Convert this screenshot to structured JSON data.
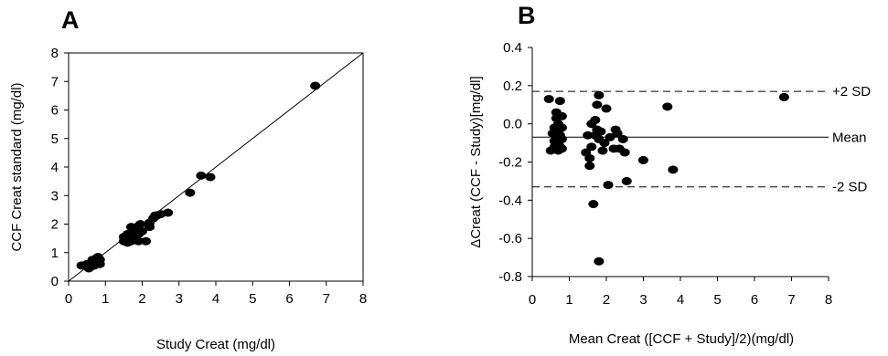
{
  "chart_data": [
    {
      "type": "scatter",
      "panel_label": "A",
      "xlabel": "Study Creat (mg/dl)",
      "ylabel": "CCF Creat standard (mg/dl)",
      "xlim": [
        0,
        8
      ],
      "ylim": [
        0,
        8
      ],
      "xticks": [
        0,
        1,
        2,
        3,
        4,
        5,
        6,
        7,
        8
      ],
      "yticks": [
        0,
        1,
        2,
        3,
        4,
        5,
        6,
        7,
        8
      ],
      "identity_line": true,
      "grid": false,
      "points": [
        [
          0.35,
          0.55
        ],
        [
          0.5,
          0.6
        ],
        [
          0.55,
          0.45
        ],
        [
          0.6,
          0.5
        ],
        [
          0.65,
          0.75
        ],
        [
          0.7,
          0.65
        ],
        [
          0.7,
          0.55
        ],
        [
          0.75,
          0.8
        ],
        [
          0.75,
          0.7
        ],
        [
          0.8,
          0.85
        ],
        [
          0.85,
          0.75
        ],
        [
          0.85,
          0.6
        ],
        [
          1.5,
          1.4
        ],
        [
          1.5,
          1.55
        ],
        [
          1.55,
          1.45
        ],
        [
          1.6,
          1.65
        ],
        [
          1.6,
          1.35
        ],
        [
          1.65,
          1.5
        ],
        [
          1.7,
          1.9
        ],
        [
          1.7,
          1.4
        ],
        [
          1.75,
          1.7
        ],
        [
          1.8,
          1.55
        ],
        [
          1.85,
          1.9
        ],
        [
          1.9,
          1.65
        ],
        [
          1.9,
          1.4
        ],
        [
          1.95,
          2.0
        ],
        [
          2.0,
          1.75
        ],
        [
          2.1,
          1.4
        ],
        [
          2.2,
          2.05
        ],
        [
          2.2,
          1.9
        ],
        [
          2.3,
          2.2
        ],
        [
          2.35,
          2.3
        ],
        [
          2.4,
          2.3
        ],
        [
          2.5,
          2.35
        ],
        [
          2.7,
          2.4
        ],
        [
          3.3,
          3.1
        ],
        [
          3.6,
          3.7
        ],
        [
          3.85,
          3.65
        ],
        [
          6.7,
          6.85
        ]
      ]
    },
    {
      "type": "scatter",
      "panel_label": "B",
      "xlabel": "Mean Creat ([CCF + Study]/2)(mg/dl)",
      "ylabel": "ΔCreat (CCF - Study)[mg/dl]",
      "xlim": [
        0,
        8
      ],
      "ylim": [
        -0.8,
        0.4
      ],
      "xticks": [
        0,
        1,
        2,
        3,
        4,
        5,
        6,
        7,
        8
      ],
      "yticks": [
        "0.4",
        "0.2",
        "0.0",
        "-0.2",
        "-0.4",
        "-0.6",
        "-0.8"
      ],
      "grid": false,
      "reference_lines": [
        {
          "label": "+2 SD",
          "y": 0.17,
          "style": "dashed"
        },
        {
          "label": "Mean",
          "y": -0.07,
          "style": "solid"
        },
        {
          "label": "-2 SD",
          "y": -0.33,
          "style": "dashed"
        }
      ],
      "points": [
        [
          0.45,
          0.13
        ],
        [
          0.5,
          -0.14
        ],
        [
          0.55,
          -0.05
        ],
        [
          0.6,
          -0.02
        ],
        [
          0.6,
          -0.09
        ],
        [
          0.6,
          -0.12
        ],
        [
          0.65,
          0.06
        ],
        [
          0.65,
          0.03
        ],
        [
          0.65,
          -0.07
        ],
        [
          0.7,
          0.0
        ],
        [
          0.7,
          -0.04
        ],
        [
          0.7,
          -0.1
        ],
        [
          0.7,
          -0.14
        ],
        [
          0.75,
          0.12
        ],
        [
          0.75,
          -0.06
        ],
        [
          0.75,
          -0.12
        ],
        [
          0.8,
          0.04
        ],
        [
          0.8,
          -0.02
        ],
        [
          0.8,
          -0.08
        ],
        [
          0.8,
          -0.13
        ],
        [
          1.45,
          -0.15
        ],
        [
          1.5,
          -0.06
        ],
        [
          1.55,
          -0.18
        ],
        [
          1.55,
          -0.22
        ],
        [
          1.6,
          0.0
        ],
        [
          1.6,
          -0.12
        ],
        [
          1.65,
          -0.42
        ],
        [
          1.7,
          0.02
        ],
        [
          1.7,
          -0.06
        ],
        [
          1.75,
          0.1
        ],
        [
          1.75,
          -0.03
        ],
        [
          1.8,
          -0.72
        ],
        [
          1.8,
          0.15
        ],
        [
          1.8,
          -0.08
        ],
        [
          1.85,
          -0.04
        ],
        [
          1.9,
          -0.14
        ],
        [
          1.95,
          -0.1
        ],
        [
          2.0,
          0.08
        ],
        [
          2.05,
          -0.32
        ],
        [
          2.1,
          -0.07
        ],
        [
          2.2,
          -0.13
        ],
        [
          2.25,
          -0.03
        ],
        [
          2.3,
          -0.05
        ],
        [
          2.35,
          -0.13
        ],
        [
          2.45,
          -0.08
        ],
        [
          2.5,
          -0.15
        ],
        [
          2.55,
          -0.3
        ],
        [
          3.0,
          -0.19
        ],
        [
          3.65,
          0.09
        ],
        [
          3.8,
          -0.24
        ],
        [
          6.8,
          0.14
        ]
      ]
    }
  ]
}
